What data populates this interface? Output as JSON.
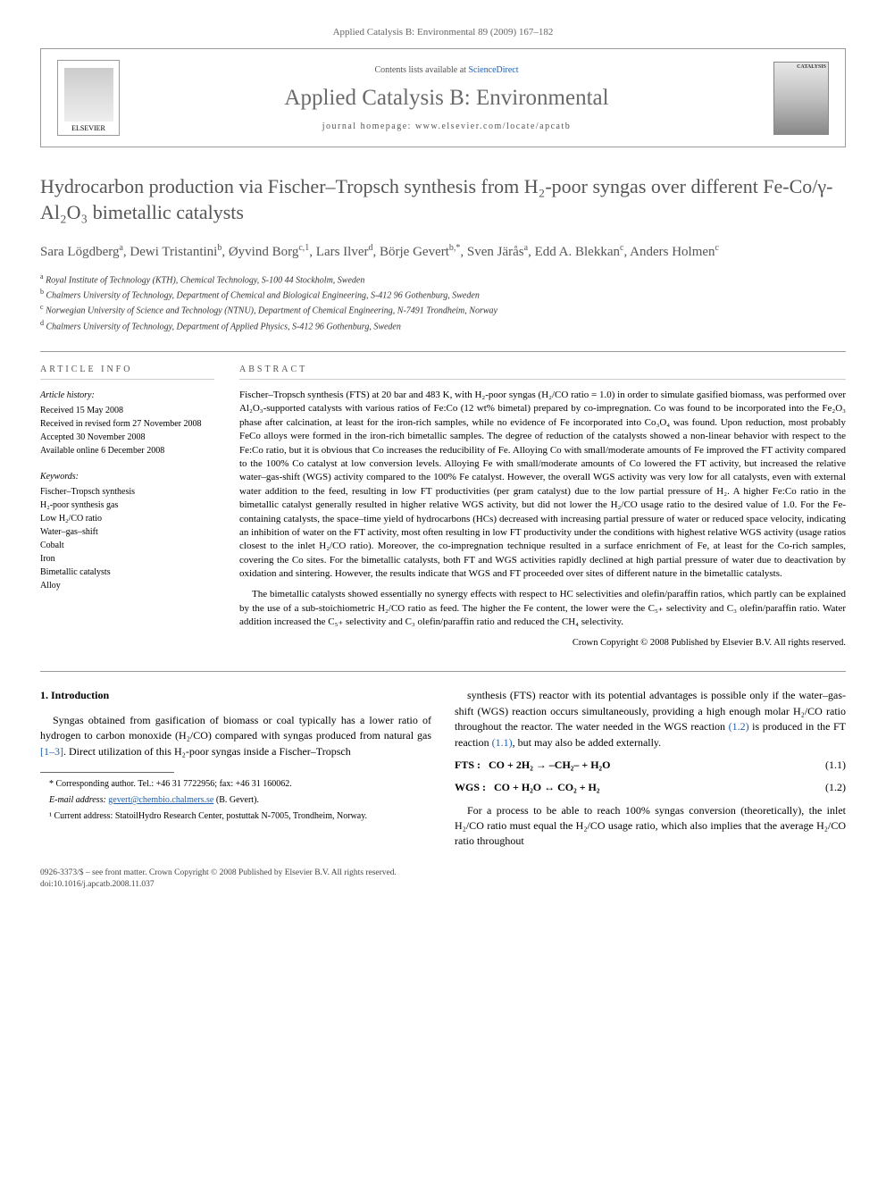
{
  "header": {
    "citation": "Applied Catalysis B: Environmental 89 (2009) 167–182"
  },
  "journal_box": {
    "elsevier_label": "ELSEVIER",
    "contents_prefix": "Contents lists available at ",
    "contents_link": "ScienceDirect",
    "journal_name": "Applied Catalysis B: Environmental",
    "homepage_prefix": "journal homepage: ",
    "homepage": "www.elsevier.com/locate/apcatb",
    "cover_text": "CATALYSIS"
  },
  "title": "Hydrocarbon production via Fischer–Tropsch synthesis from H₂-poor syngas over different Fe-Co/γ-Al₂O₃ bimetallic catalysts",
  "authors_html": "Sara Lögdberg<span class='author-sup'>a</span>, Dewi Tristantini<span class='author-sup'>b</span>, Øyvind Borg<span class='author-sup'>c,1</span>, Lars Ilver<span class='author-sup'>d</span>, Börje Gevert<span class='author-sup'>b,*</span>, Sven Järås<span class='author-sup'>a</span>, Edd A. Blekkan<span class='author-sup'>c</span>, Anders Holmen<span class='author-sup'>c</span>",
  "affiliations": [
    {
      "sup": "a",
      "text": "Royal Institute of Technology (KTH), Chemical Technology, S-100 44 Stockholm, Sweden"
    },
    {
      "sup": "b",
      "text": "Chalmers University of Technology, Department of Chemical and Biological Engineering, S-412 96 Gothenburg, Sweden"
    },
    {
      "sup": "c",
      "text": "Norwegian University of Science and Technology (NTNU), Department of Chemical Engineering, N-7491 Trondheim, Norway"
    },
    {
      "sup": "d",
      "text": "Chalmers University of Technology, Department of Applied Physics, S-412 96 Gothenburg, Sweden"
    }
  ],
  "article_info": {
    "heading": "ARTICLE INFO",
    "history_heading": "Article history:",
    "history": [
      "Received 15 May 2008",
      "Received in revised form 27 November 2008",
      "Accepted 30 November 2008",
      "Available online 6 December 2008"
    ],
    "keywords_heading": "Keywords:",
    "keywords": [
      "Fischer–Tropsch synthesis",
      "H₂-poor synthesis gas",
      "Low H₂/CO ratio",
      "Water–gas–shift",
      "Cobalt",
      "Iron",
      "Bimetallic catalysts",
      "Alloy"
    ]
  },
  "abstract": {
    "heading": "ABSTRACT",
    "p1": "Fischer–Tropsch synthesis (FTS) at 20 bar and 483 K, with H₂-poor syngas (H₂/CO ratio = 1.0) in order to simulate gasified biomass, was performed over Al₂O₃-supported catalysts with various ratios of Fe:Co (12 wt% bimetal) prepared by co-impregnation. Co was found to be incorporated into the Fe₂O₃ phase after calcination, at least for the iron-rich samples, while no evidence of Fe incorporated into Co₃O₄ was found. Upon reduction, most probably FeCo alloys were formed in the iron-rich bimetallic samples. The degree of reduction of the catalysts showed a non-linear behavior with respect to the Fe:Co ratio, but it is obvious that Co increases the reducibility of Fe. Alloying Co with small/moderate amounts of Fe improved the FT activity compared to the 100% Co catalyst at low conversion levels. Alloying Fe with small/moderate amounts of Co lowered the FT activity, but increased the relative water–gas-shift (WGS) activity compared to the 100% Fe catalyst. However, the overall WGS activity was very low for all catalysts, even with external water addition to the feed, resulting in low FT productivities (per gram catalyst) due to the low partial pressure of H₂. A higher Fe:Co ratio in the bimetallic catalyst generally resulted in higher relative WGS activity, but did not lower the H₂/CO usage ratio to the desired value of 1.0. For the Fe-containing catalysts, the space–time yield of hydrocarbons (HCs) decreased with increasing partial pressure of water or reduced space velocity, indicating an inhibition of water on the FT activity, most often resulting in low FT productivity under the conditions with highest relative WGS activity (usage ratios closest to the inlet H₂/CO ratio). Moreover, the co-impregnation technique resulted in a surface enrichment of Fe, at least for the Co-rich samples, covering the Co sites. For the bimetallic catalysts, both FT and WGS activities rapidly declined at high partial pressure of water due to deactivation by oxidation and sintering. However, the results indicate that WGS and FT proceeded over sites of different nature in the bimetallic catalysts.",
    "p2": "The bimetallic catalysts showed essentially no synergy effects with respect to HC selectivities and olefin/paraffin ratios, which partly can be explained by the use of a sub-stoichiometric H₂/CO ratio as feed. The higher the Fe content, the lower were the C₅₊ selectivity and C₃ olefin/paraffin ratio. Water addition increased the C₅₊ selectivity and C₃ olefin/paraffin ratio and reduced the CH₄ selectivity.",
    "copyright": "Crown Copyright © 2008 Published by Elsevier B.V. All rights reserved."
  },
  "intro": {
    "heading": "1. Introduction",
    "p1": "Syngas obtained from gasification of biomass or coal typically has a lower ratio of hydrogen to carbon monoxide (H₂/CO) compared with syngas produced from natural gas [1–3]. Direct utilization of this H₂-poor syngas inside a Fischer–Tropsch",
    "p2": "synthesis (FTS) reactor with its potential advantages is possible only if the water–gas-shift (WGS) reaction occurs simultaneously, providing a high enough molar H₂/CO ratio throughout the reactor. The water needed in the WGS reaction (1.2) is produced in the FT reaction (1.1), but may also be added externally.",
    "eq1_label": "FTS :",
    "eq1": "CO + 2H₂ → –CH₂– + H₂O",
    "eq1_num": "(1.1)",
    "eq2_label": "WGS :",
    "eq2": "CO + H₂O ↔ CO₂ + H₂",
    "eq2_num": "(1.2)",
    "p3": "For a process to be able to reach 100% syngas conversion (theoretically), the inlet H₂/CO ratio must equal the H₂/CO usage ratio, which also implies that the average H₂/CO ratio throughout"
  },
  "footnotes": {
    "corr": "* Corresponding author. Tel.: +46 31 7722956; fax: +46 31 160062.",
    "email_label": "E-mail address: ",
    "email": "gevert@chembio.chalmers.se",
    "email_suffix": " (B. Gevert).",
    "note1": "¹ Current address: StatoilHydro Research Center, postuttak N-7005, Trondheim, Norway."
  },
  "bottom": {
    "line1": "0926-3373/$ – see front matter. Crown Copyright © 2008 Published by Elsevier B.V. All rights reserved.",
    "line2": "doi:10.1016/j.apcatb.2008.11.037"
  },
  "refs_link": "[1–3]"
}
